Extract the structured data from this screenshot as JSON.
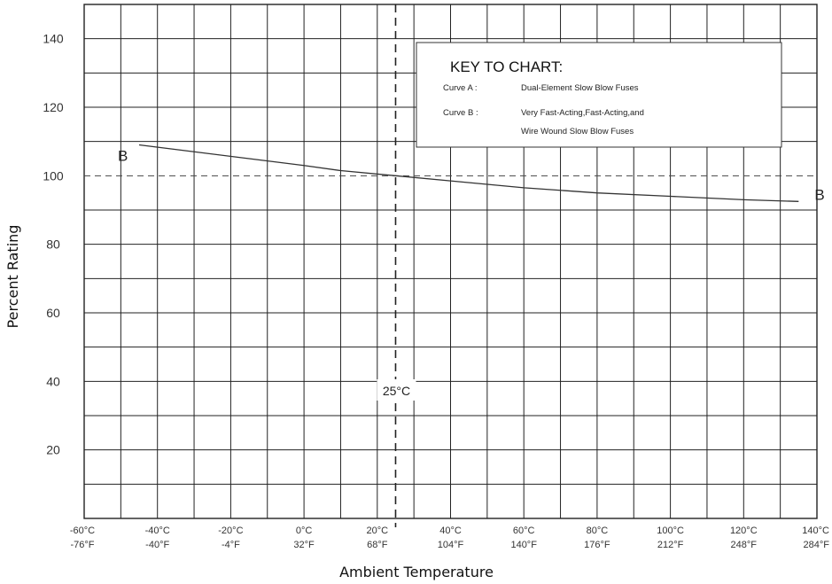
{
  "chart_data": {
    "type": "line",
    "title": "",
    "xlabel": "Ambient Temperature",
    "ylabel": "Percent Rating",
    "xlim": [
      -60,
      140
    ],
    "ylim": [
      0,
      150
    ],
    "grid": true,
    "yticks": [
      20,
      40,
      60,
      80,
      100,
      120,
      140
    ],
    "xticks": [
      {
        "c": -60,
        "label_c": "-60°C",
        "label_f": "-76°F"
      },
      {
        "c": -40,
        "label_c": "-40°C",
        "label_f": "-40°F"
      },
      {
        "c": -20,
        "label_c": "-20°C",
        "label_f": "-4°F"
      },
      {
        "c": 0,
        "label_c": "0°C",
        "label_f": "32°F"
      },
      {
        "c": 20,
        "label_c": "20°C",
        "label_f": "68°F"
      },
      {
        "c": 40,
        "label_c": "40°C",
        "label_f": "104°F"
      },
      {
        "c": 60,
        "label_c": "60°C",
        "label_f": "140°F"
      },
      {
        "c": 80,
        "label_c": "80°C",
        "label_f": "176°F"
      },
      {
        "c": 100,
        "label_c": "100°C",
        "label_f": "212°F"
      },
      {
        "c": 120,
        "label_c": "120°C",
        "label_f": "248°F"
      },
      {
        "c": 140,
        "label_c": "140°C",
        "label_f": "284°F"
      }
    ],
    "reference_lines": {
      "horizontal_y": 100,
      "vertical_x": 25,
      "vertical_label": "25°C"
    },
    "series": [
      {
        "label": "B",
        "x": [
          -45,
          -30,
          -15,
          0,
          10,
          25,
          40,
          60,
          80,
          100,
          120,
          135
        ],
        "y": [
          109,
          107,
          105,
          103,
          101.5,
          100,
          98.5,
          96.5,
          95,
          94,
          93,
          92.5
        ]
      }
    ],
    "key": {
      "title": "KEY TO CHART:",
      "entries": [
        {
          "name": "Curve A :",
          "text": "Dual-Element Slow Blow Fuses"
        },
        {
          "name": "Curve B :",
          "text": "Very Fast-Acting,Fast-Acting,and",
          "text2": "Wire Wound Slow Blow Fuses"
        }
      ]
    }
  }
}
